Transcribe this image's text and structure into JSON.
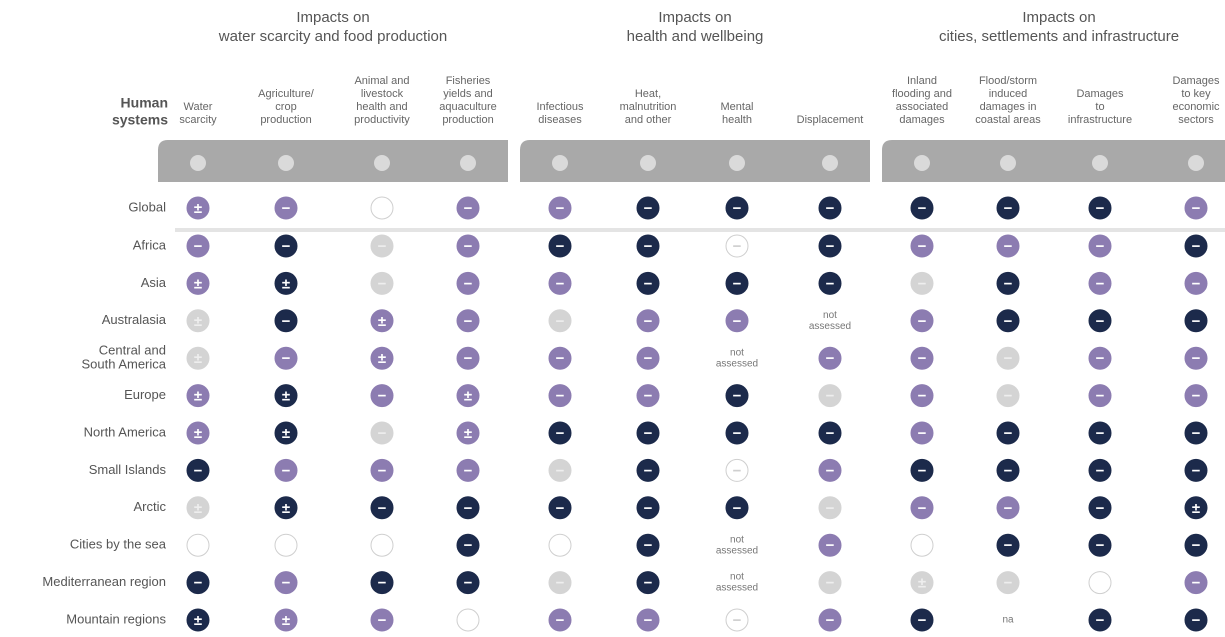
{
  "header": {
    "row_header": [
      "Human",
      "systems"
    ]
  },
  "palette": {
    "dark": "#1c2a4b",
    "mid": "#8c7cb1",
    "light": "#d4d4d4",
    "none": "#ffffff"
  },
  "groups": [
    {
      "title": [
        "Impacts on",
        "water scarcity and food production"
      ],
      "span": 4
    },
    {
      "title": [
        "Impacts on",
        "health and wellbeing"
      ],
      "span": 4
    },
    {
      "title": [
        "Impacts on",
        "cities, settlements and infrastructure"
      ],
      "span": 4
    }
  ],
  "columns": [
    [
      "Water",
      "scarcity"
    ],
    [
      "Agriculture/",
      "crop",
      "production"
    ],
    [
      "Animal and",
      "livestock",
      "health and",
      "productivity"
    ],
    [
      "Fisheries",
      "yields and",
      "aquaculture",
      "production"
    ],
    [
      "Infectious",
      "diseases"
    ],
    [
      "Heat,",
      "malnutrition",
      "and other"
    ],
    [
      "Mental",
      "health"
    ],
    [
      "Displacement"
    ],
    [
      "Inland",
      "flooding and",
      "associated",
      "damages"
    ],
    [
      "Flood/storm",
      "induced",
      "damages in",
      "coastal areas"
    ],
    [
      "Damages",
      "to",
      "infrastructure"
    ],
    [
      "Damages",
      "to key",
      "economic",
      "sectors"
    ]
  ],
  "rows": [
    {
      "label": [
        "Global"
      ],
      "cells": [
        {
          "sign": "±",
          "tone": "mid"
        },
        {
          "sign": "−",
          "tone": "mid"
        },
        {
          "tone": "none"
        },
        {
          "sign": "−",
          "tone": "mid"
        },
        {
          "sign": "−",
          "tone": "mid"
        },
        {
          "sign": "−",
          "tone": "dark"
        },
        {
          "sign": "−",
          "tone": "dark"
        },
        {
          "sign": "−",
          "tone": "dark"
        },
        {
          "sign": "−",
          "tone": "dark"
        },
        {
          "sign": "−",
          "tone": "dark"
        },
        {
          "sign": "−",
          "tone": "dark"
        },
        {
          "sign": "−",
          "tone": "mid"
        }
      ]
    },
    {
      "label": [
        "Africa"
      ],
      "cells": [
        {
          "sign": "−",
          "tone": "mid"
        },
        {
          "sign": "−",
          "tone": "dark"
        },
        {
          "sign": "−",
          "tone": "light"
        },
        {
          "sign": "−",
          "tone": "mid"
        },
        {
          "sign": "−",
          "tone": "dark"
        },
        {
          "sign": "−",
          "tone": "dark"
        },
        {
          "sign": "−",
          "tone": "none"
        },
        {
          "sign": "−",
          "tone": "dark"
        },
        {
          "sign": "−",
          "tone": "mid"
        },
        {
          "sign": "−",
          "tone": "mid"
        },
        {
          "sign": "−",
          "tone": "mid"
        },
        {
          "sign": "−",
          "tone": "dark"
        }
      ]
    },
    {
      "label": [
        "Asia"
      ],
      "cells": [
        {
          "sign": "±",
          "tone": "mid"
        },
        {
          "sign": "±",
          "tone": "dark"
        },
        {
          "sign": "−",
          "tone": "light"
        },
        {
          "sign": "−",
          "tone": "mid"
        },
        {
          "sign": "−",
          "tone": "mid"
        },
        {
          "sign": "−",
          "tone": "dark"
        },
        {
          "sign": "−",
          "tone": "dark"
        },
        {
          "sign": "−",
          "tone": "dark"
        },
        {
          "sign": "−",
          "tone": "light"
        },
        {
          "sign": "−",
          "tone": "dark"
        },
        {
          "sign": "−",
          "tone": "mid"
        },
        {
          "sign": "−",
          "tone": "mid"
        }
      ]
    },
    {
      "label": [
        "Australasia"
      ],
      "cells": [
        {
          "sign": "±",
          "tone": "light"
        },
        {
          "sign": "−",
          "tone": "dark"
        },
        {
          "sign": "±",
          "tone": "mid"
        },
        {
          "sign": "−",
          "tone": "mid"
        },
        {
          "sign": "−",
          "tone": "light"
        },
        {
          "sign": "−",
          "tone": "mid"
        },
        {
          "sign": "−",
          "tone": "mid"
        },
        [
          "not",
          "assessed"
        ],
        {
          "sign": "−",
          "tone": "mid"
        },
        {
          "sign": "−",
          "tone": "dark"
        },
        {
          "sign": "−",
          "tone": "dark"
        },
        {
          "sign": "−",
          "tone": "dark"
        }
      ]
    },
    {
      "label": [
        "Central and",
        "South America"
      ],
      "cells": [
        {
          "sign": "±",
          "tone": "light"
        },
        {
          "sign": "−",
          "tone": "mid"
        },
        {
          "sign": "±",
          "tone": "mid"
        },
        {
          "sign": "−",
          "tone": "mid"
        },
        {
          "sign": "−",
          "tone": "mid"
        },
        {
          "sign": "−",
          "tone": "mid"
        },
        [
          "not",
          "assessed"
        ],
        {
          "sign": "−",
          "tone": "mid"
        },
        {
          "sign": "−",
          "tone": "mid"
        },
        {
          "sign": "−",
          "tone": "light"
        },
        {
          "sign": "−",
          "tone": "mid"
        },
        {
          "sign": "−",
          "tone": "mid"
        }
      ]
    },
    {
      "label": [
        "Europe"
      ],
      "cells": [
        {
          "sign": "±",
          "tone": "mid"
        },
        {
          "sign": "±",
          "tone": "dark"
        },
        {
          "sign": "−",
          "tone": "mid"
        },
        {
          "sign": "±",
          "tone": "mid"
        },
        {
          "sign": "−",
          "tone": "mid"
        },
        {
          "sign": "−",
          "tone": "mid"
        },
        {
          "sign": "−",
          "tone": "dark"
        },
        {
          "sign": "−",
          "tone": "light"
        },
        {
          "sign": "−",
          "tone": "mid"
        },
        {
          "sign": "−",
          "tone": "light"
        },
        {
          "sign": "−",
          "tone": "mid"
        },
        {
          "sign": "−",
          "tone": "mid"
        }
      ]
    },
    {
      "label": [
        "North America"
      ],
      "cells": [
        {
          "sign": "±",
          "tone": "mid"
        },
        {
          "sign": "±",
          "tone": "dark"
        },
        {
          "sign": "−",
          "tone": "light"
        },
        {
          "sign": "±",
          "tone": "mid"
        },
        {
          "sign": "−",
          "tone": "dark"
        },
        {
          "sign": "−",
          "tone": "dark"
        },
        {
          "sign": "−",
          "tone": "dark"
        },
        {
          "sign": "−",
          "tone": "dark"
        },
        {
          "sign": "−",
          "tone": "mid"
        },
        {
          "sign": "−",
          "tone": "dark"
        },
        {
          "sign": "−",
          "tone": "dark"
        },
        {
          "sign": "−",
          "tone": "dark"
        }
      ]
    },
    {
      "label": [
        "Small Islands"
      ],
      "cells": [
        {
          "sign": "−",
          "tone": "dark"
        },
        {
          "sign": "−",
          "tone": "mid"
        },
        {
          "sign": "−",
          "tone": "mid"
        },
        {
          "sign": "−",
          "tone": "mid"
        },
        {
          "sign": "−",
          "tone": "light"
        },
        {
          "sign": "−",
          "tone": "dark"
        },
        {
          "sign": "−",
          "tone": "none"
        },
        {
          "sign": "−",
          "tone": "mid"
        },
        {
          "sign": "−",
          "tone": "dark"
        },
        {
          "sign": "−",
          "tone": "dark"
        },
        {
          "sign": "−",
          "tone": "dark"
        },
        {
          "sign": "−",
          "tone": "dark"
        }
      ]
    },
    {
      "label": [
        "Arctic"
      ],
      "cells": [
        {
          "sign": "±",
          "tone": "light"
        },
        {
          "sign": "±",
          "tone": "dark"
        },
        {
          "sign": "−",
          "tone": "dark"
        },
        {
          "sign": "−",
          "tone": "dark"
        },
        {
          "sign": "−",
          "tone": "dark"
        },
        {
          "sign": "−",
          "tone": "dark"
        },
        {
          "sign": "−",
          "tone": "dark"
        },
        {
          "sign": "−",
          "tone": "light"
        },
        {
          "sign": "−",
          "tone": "mid"
        },
        {
          "sign": "−",
          "tone": "mid"
        },
        {
          "sign": "−",
          "tone": "dark"
        },
        {
          "sign": "±",
          "tone": "dark"
        }
      ]
    },
    {
      "label": [
        "Cities by the sea"
      ],
      "cells": [
        {
          "tone": "none"
        },
        {
          "tone": "none"
        },
        {
          "tone": "none"
        },
        {
          "sign": "−",
          "tone": "dark"
        },
        {
          "tone": "none"
        },
        {
          "sign": "−",
          "tone": "dark"
        },
        [
          "not",
          "assessed"
        ],
        {
          "sign": "−",
          "tone": "mid"
        },
        {
          "tone": "none"
        },
        {
          "sign": "−",
          "tone": "dark"
        },
        {
          "sign": "−",
          "tone": "dark"
        },
        {
          "sign": "−",
          "tone": "dark"
        }
      ]
    },
    {
      "label": [
        "Mediterranean region"
      ],
      "cells": [
        {
          "sign": "−",
          "tone": "dark"
        },
        {
          "sign": "−",
          "tone": "mid"
        },
        {
          "sign": "−",
          "tone": "dark"
        },
        {
          "sign": "−",
          "tone": "dark"
        },
        {
          "sign": "−",
          "tone": "light"
        },
        {
          "sign": "−",
          "tone": "dark"
        },
        [
          "not",
          "assessed"
        ],
        {
          "sign": "−",
          "tone": "light"
        },
        {
          "sign": "±",
          "tone": "light"
        },
        {
          "sign": "−",
          "tone": "light"
        },
        {
          "tone": "none"
        },
        {
          "sign": "−",
          "tone": "mid"
        }
      ]
    },
    {
      "label": [
        "Mountain regions"
      ],
      "cells": [
        {
          "sign": "±",
          "tone": "dark"
        },
        {
          "sign": "±",
          "tone": "mid"
        },
        {
          "sign": "−",
          "tone": "mid"
        },
        {
          "tone": "none"
        },
        {
          "sign": "−",
          "tone": "mid"
        },
        {
          "sign": "−",
          "tone": "mid"
        },
        {
          "sign": "−",
          "tone": "none"
        },
        {
          "sign": "−",
          "tone": "mid"
        },
        {
          "sign": "−",
          "tone": "dark"
        },
        [
          "na"
        ],
        {
          "sign": "−",
          "tone": "dark"
        },
        {
          "sign": "−",
          "tone": "dark"
        }
      ]
    }
  ]
}
